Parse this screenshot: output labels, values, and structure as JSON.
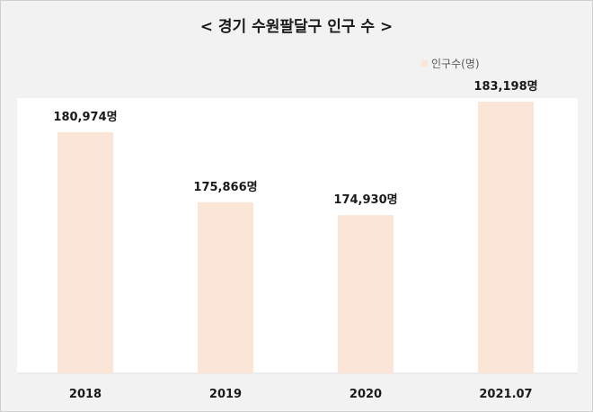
{
  "chart_data": {
    "type": "bar",
    "title": "< 경기 수원팔달구 인구 수 >",
    "categories": [
      "2018",
      "2019",
      "2020",
      "2021.07"
    ],
    "series": [
      {
        "name": "인구수(명)",
        "values": [
          180974,
          175866,
          174930,
          183198
        ],
        "data_labels": [
          "180,974명",
          "175,866명",
          "174,930명",
          "183,198명"
        ],
        "color": "#fbe5d6"
      }
    ],
    "xlabel": "",
    "ylabel": "",
    "grid": false,
    "legend_position": "top-right",
    "axis_color": "#d9d9d9"
  }
}
